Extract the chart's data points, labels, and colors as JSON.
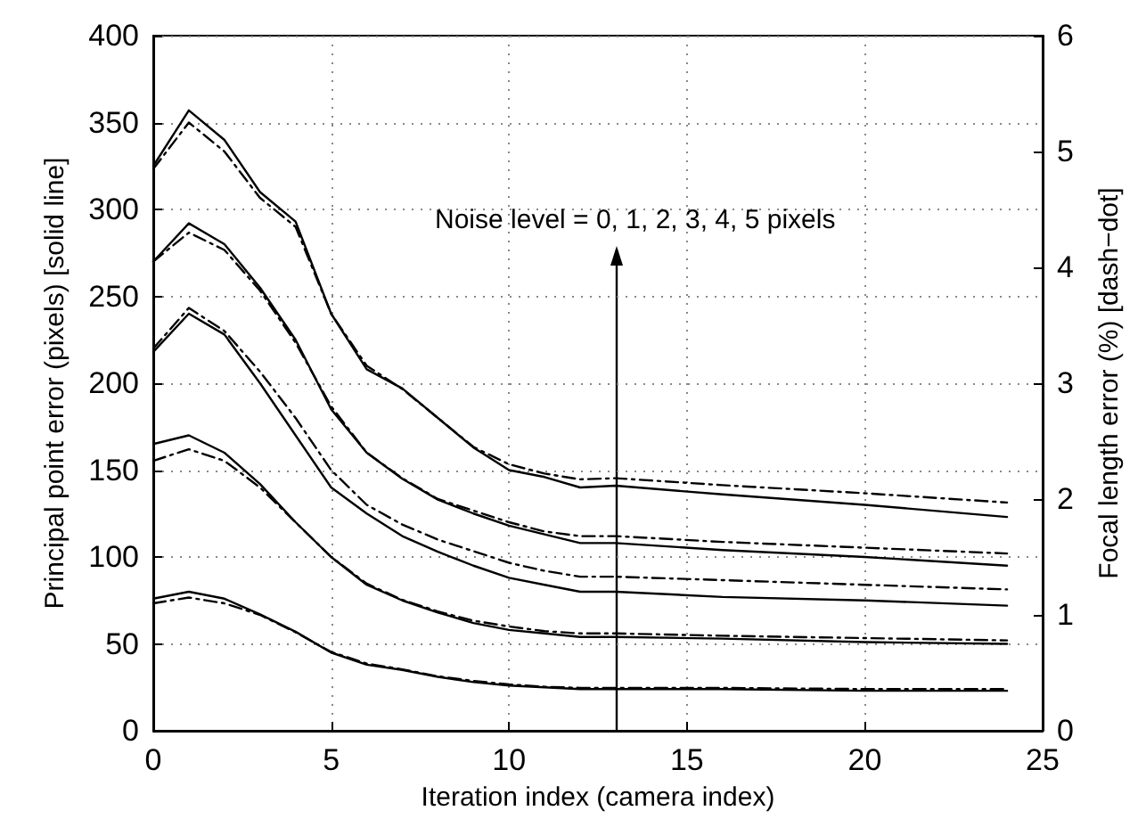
{
  "chart_data": {
    "type": "line",
    "xlabel": "Iteration index (camera index)",
    "ylabel": "Principal point error (pixels) [solid line]",
    "y2label": "Focal length error (%) [dash−dot]",
    "x": [
      0,
      1,
      2,
      3,
      4,
      5,
      6,
      7,
      8,
      9,
      10,
      11,
      12,
      13,
      16,
      20,
      24
    ],
    "series": [
      {
        "color": "#000000",
        "line_style": "solid",
        "values": [
          325,
          357,
          340,
          310,
          293,
          240,
          208,
          197,
          180,
          163,
          150,
          146,
          140,
          141,
          136,
          130,
          123
        ]
      },
      {
        "color": "#000000",
        "line_style": "solid",
        "values": [
          270,
          292,
          280,
          255,
          225,
          185,
          160,
          145,
          133,
          125,
          118,
          113,
          108,
          108,
          104,
          100,
          95
        ]
      },
      {
        "color": "#000000",
        "line_style": "solid",
        "values": [
          218,
          240,
          228,
          200,
          170,
          140,
          125,
          112,
          103,
          95,
          88,
          84,
          80,
          80,
          77,
          75,
          72
        ]
      },
      {
        "color": "#000000",
        "line_style": "solid",
        "values": [
          165,
          170,
          160,
          142,
          120,
          100,
          84,
          75,
          68,
          62,
          58,
          56,
          54,
          54,
          53,
          51,
          50
        ]
      },
      {
        "color": "#000000",
        "line_style": "solid",
        "values": [
          76,
          80,
          76,
          67,
          57,
          45,
          38,
          35,
          31,
          28,
          26,
          25,
          24,
          24,
          24,
          23,
          23
        ]
      },
      {
        "color": "#000000",
        "line_style": "dashed",
        "axis": "y2",
        "values": [
          4.85,
          5.25,
          5.0,
          4.6,
          4.35,
          3.6,
          3.15,
          2.95,
          2.7,
          2.45,
          2.3,
          2.22,
          2.17,
          2.18,
          2.12,
          2.05,
          1.97
        ]
      },
      {
        "color": "#000000",
        "line_style": "dashed",
        "axis": "y2",
        "values": [
          4.05,
          4.3,
          4.15,
          3.8,
          3.35,
          2.8,
          2.4,
          2.18,
          2.0,
          1.9,
          1.8,
          1.72,
          1.68,
          1.68,
          1.63,
          1.58,
          1.53
        ]
      },
      {
        "color": "#000000",
        "line_style": "dashed",
        "axis": "y2",
        "values": [
          3.3,
          3.65,
          3.45,
          3.1,
          2.7,
          2.25,
          1.95,
          1.78,
          1.65,
          1.55,
          1.45,
          1.38,
          1.33,
          1.33,
          1.3,
          1.26,
          1.22
        ]
      },
      {
        "color": "#000000",
        "line_style": "dashed",
        "axis": "y2",
        "values": [
          2.33,
          2.43,
          2.33,
          2.1,
          1.8,
          1.5,
          1.27,
          1.13,
          1.03,
          0.95,
          0.9,
          0.86,
          0.84,
          0.84,
          0.82,
          0.8,
          0.78
        ]
      },
      {
        "color": "#000000",
        "line_style": "dashed",
        "axis": "y2",
        "values": [
          1.1,
          1.15,
          1.1,
          1.0,
          0.85,
          0.68,
          0.58,
          0.53,
          0.47,
          0.43,
          0.4,
          0.38,
          0.37,
          0.37,
          0.37,
          0.36,
          0.36
        ]
      }
    ],
    "xlim": [
      0,
      25
    ],
    "xticks": [
      0,
      5,
      10,
      15,
      20,
      25
    ],
    "ylim": [
      0,
      400
    ],
    "yticks": [
      0,
      50,
      100,
      150,
      200,
      250,
      300,
      350,
      400
    ],
    "y2lim": [
      0,
      6
    ],
    "y2ticks": [
      0,
      1,
      2,
      3,
      4,
      5,
      6
    ],
    "annotations": [
      "Noise level = 0, 1, 2, 3, 4, 5 pixels"
    ],
    "grid": true,
    "marker": "none"
  }
}
